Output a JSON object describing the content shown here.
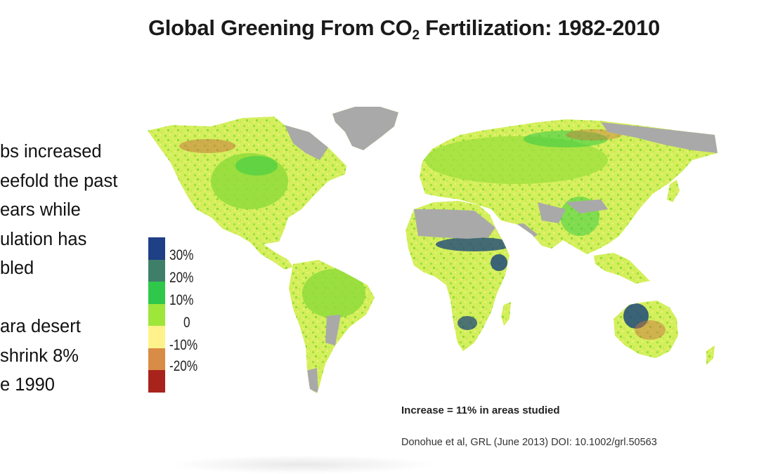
{
  "title": {
    "prefix": "Global Greening From CO",
    "subscript": "2",
    "suffix": " Fertilization: 1982-2010"
  },
  "bullets": [
    "bs increased",
    "eefold the past",
    "ears while",
    "ulation has",
    "bled",
    "",
    "ara desert",
    "shrink 8%",
    "e 1990"
  ],
  "legend": {
    "items": [
      {
        "color": "#1f3f86"
      },
      {
        "color": "#3f7f6a"
      },
      {
        "color": "#2fc84a"
      },
      {
        "color": "#9ee63a"
      },
      {
        "color": "#fff28a"
      },
      {
        "color": "#d88c45"
      },
      {
        "color": "#a8231c"
      }
    ],
    "labels": [
      "30%",
      "20%",
      "10%",
      "0",
      "-10%",
      "-20%"
    ]
  },
  "map": {
    "colors": {
      "ocean": "#ffffff",
      "no_data": "#a9a9a9",
      "neutral": "#d9f05a",
      "green": "#8fdc3a",
      "bright_green": "#3dcc45",
      "dark_blue": "#1f4a7a",
      "brown": "#c9763e",
      "yellow": "#f6f08a"
    }
  },
  "footnote": "Increase = 11% in areas studied",
  "citation": "Donohue et al, GRL (June 2013) DOI: 10.1002/grl.50563"
}
